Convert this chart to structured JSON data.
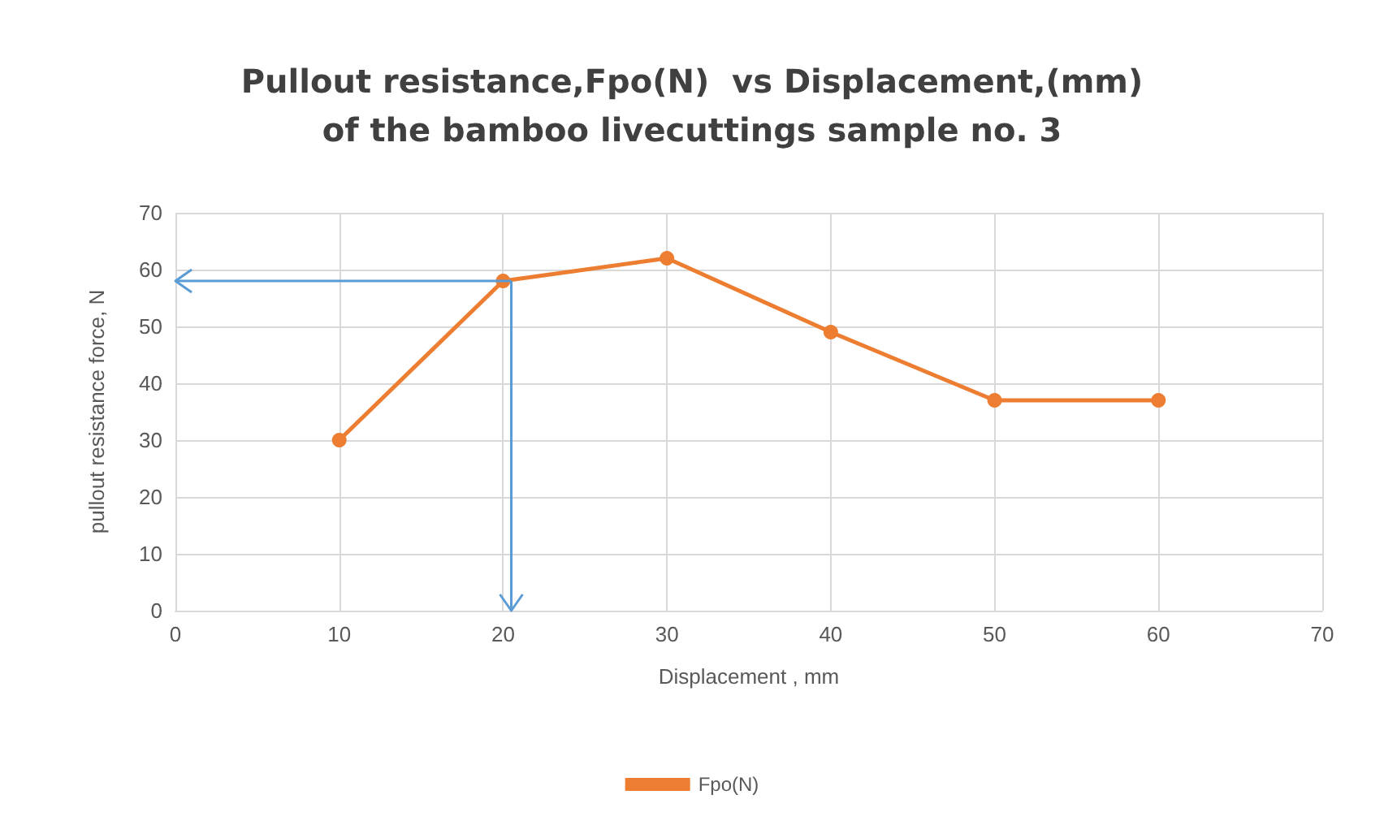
{
  "chart_data": {
    "type": "line",
    "title": "Pullout resistance,Fpo(N)  vs Displacement,(mm)\nof the bamboo livecuttings sample no. 3",
    "xlabel": "Displacement , mm",
    "ylabel": "pullout resistance force, N",
    "x": [
      10,
      20,
      30,
      40,
      50,
      60
    ],
    "series": [
      {
        "name": "Fpo(N)",
        "color": "#ed7d31",
        "values": [
          30,
          58,
          62,
          49,
          37,
          37
        ]
      }
    ],
    "xlim": [
      0,
      70
    ],
    "xticks": [
      0,
      10,
      20,
      30,
      40,
      50,
      60,
      70
    ],
    "ylim": [
      0,
      70
    ],
    "yticks": [
      0,
      10,
      20,
      30,
      40,
      50,
      60,
      70
    ],
    "grid": true,
    "legend": "bottom",
    "marker": "circle",
    "line_style": "solid",
    "ref_lines": [
      {
        "axis": "x",
        "value": 20.5,
        "color": "#5b9bd5"
      },
      {
        "axis": "y",
        "value": 58,
        "color": "#5b9bd5"
      }
    ]
  }
}
